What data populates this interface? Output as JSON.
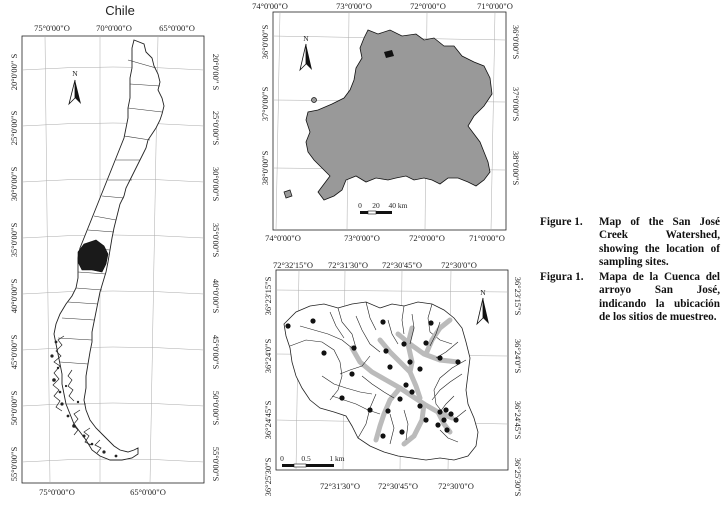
{
  "chile_map": {
    "title": "Chile",
    "top_lon": [
      "75°0'00\"O",
      "70°0'00\"O",
      "65°0'00\"O"
    ],
    "bottom_lon": [
      "75°0'00\"O",
      "65°0'00\"O"
    ],
    "left_lat": [
      "20°0'00\" S",
      "25°0'00\"S",
      "30°0'00\"S",
      "35°0'00\"S",
      "40°0'00\"S",
      "45°0'00\"S",
      "50°0'00\"S",
      "55°0'00\"S"
    ],
    "right_lat": [
      "20°0'00\" S",
      "25°0'00\"S",
      "30°0'00\"S",
      "35°0'00\"S",
      "40°0'00\"S",
      "45°0'00\"S",
      "50°0'00\"S",
      "55°0'00\"S"
    ],
    "north": "N"
  },
  "region_map": {
    "top_lon": [
      "74°0'00\"O",
      "73°0'00\"O",
      "72°0'00\"O",
      "71°0'00\"O"
    ],
    "bottom_lon": [
      "74°0'00\"O",
      "73°0'00\"O",
      "72°0'00\"O",
      "71°0'00\"O"
    ],
    "left_lat": [
      "36°0'00\"S",
      "37°0'00\"S",
      "38°0'00\"S"
    ],
    "right_lat": [
      "36°0'00\"S",
      "37°0'00\"S",
      "38°0'00\"S"
    ],
    "north": "N",
    "scale": [
      "0",
      "20",
      "40 km"
    ],
    "region_color": "#999999"
  },
  "watershed_map": {
    "top_lon": [
      "72°32'15\"O",
      "72°31'30\"O",
      "72°30'45\"O",
      "72°30'0\"O"
    ],
    "bottom_lon": [
      "72°31'30\"O",
      "72°30'45\"O",
      "72°30'0\"O"
    ],
    "left_lat": [
      "36°23'15\"S",
      "36°24'0\"S",
      "36°24'45\"S",
      "36°25'30\"S"
    ],
    "right_lat": [
      "36°23'15\"S",
      "36°24'0\"S",
      "36°24'45\"S",
      "36°25'30\"S"
    ],
    "north": "N",
    "scale": [
      "0",
      "0.5",
      "1 km"
    ]
  },
  "caption": [
    {
      "label": "Figure 1.",
      "text": "Map of the San José Creek Watershed, showing the location of sampling sites."
    },
    {
      "label": "Figura 1.",
      "text": "Mapa de la Cuenca del arroyo San José, indicando la ubicación de los sitios de muestreo."
    }
  ]
}
